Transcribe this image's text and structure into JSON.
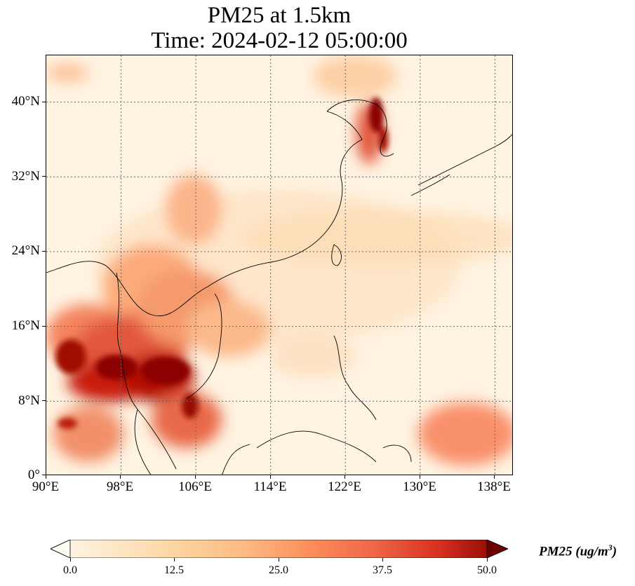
{
  "title": {
    "line1": "PM25 at 1.5km",
    "line2": "Time: 2024-02-12 05:00:00"
  },
  "map": {
    "lon_range": [
      90,
      140
    ],
    "lat_range": [
      0,
      45
    ],
    "gridlines": true,
    "colormap": "OrRd",
    "y_ticks": [
      "40°N",
      "32°N",
      "24°N",
      "16°N",
      "8°N",
      "0°"
    ],
    "x_ticks": [
      "90°E",
      "98°E",
      "106°E",
      "114°E",
      "122°E",
      "130°E",
      "138°E"
    ]
  },
  "colorbar": {
    "min": 0.0,
    "max": 50.0,
    "extend": "both",
    "ticks": [
      "0.0",
      "12.5",
      "25.0",
      "37.5",
      "50.0"
    ],
    "label_main": "PM25 (ug/m",
    "label_sup": "3",
    "label_end": ")"
  },
  "colors": {
    "low": "#fff7ec",
    "mid": "#fc8d59",
    "high": "#7f0000"
  }
}
